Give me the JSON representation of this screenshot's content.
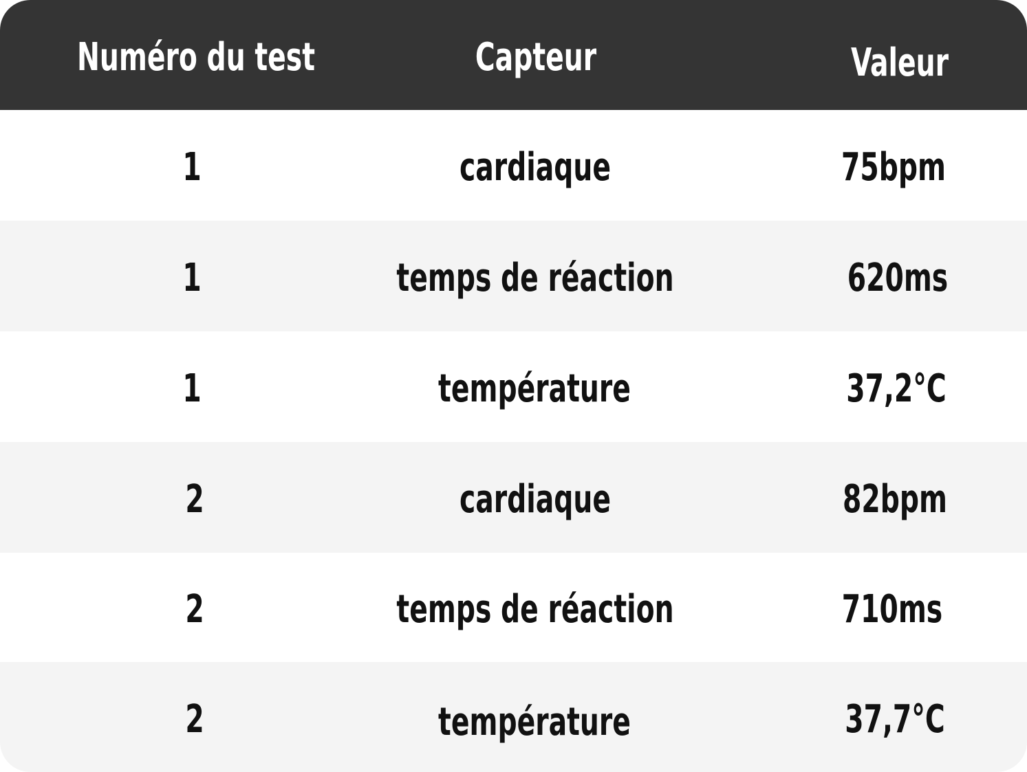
{
  "table": {
    "headers": {
      "test_number": "Numéro du test",
      "sensor": "Capteur",
      "value": "Valeur"
    },
    "rows": [
      {
        "test_number": "1",
        "sensor": "cardiaque",
        "value": "75bpm"
      },
      {
        "test_number": "1",
        "sensor": "temps de réaction",
        "value": "620ms"
      },
      {
        "test_number": "1",
        "sensor": "température",
        "value": "37,2°C"
      },
      {
        "test_number": "2",
        "sensor": "cardiaque",
        "value": "82bpm"
      },
      {
        "test_number": "2",
        "sensor": "temps de réaction",
        "value": "710ms"
      },
      {
        "test_number": "2",
        "sensor": "température",
        "value": "37,7°C"
      }
    ]
  },
  "colors": {
    "header_bg": "#343434",
    "header_text": "#ffffff",
    "row_alt_bg": "#f4f4f4",
    "row_bg": "#ffffff",
    "body_text": "#111111"
  }
}
